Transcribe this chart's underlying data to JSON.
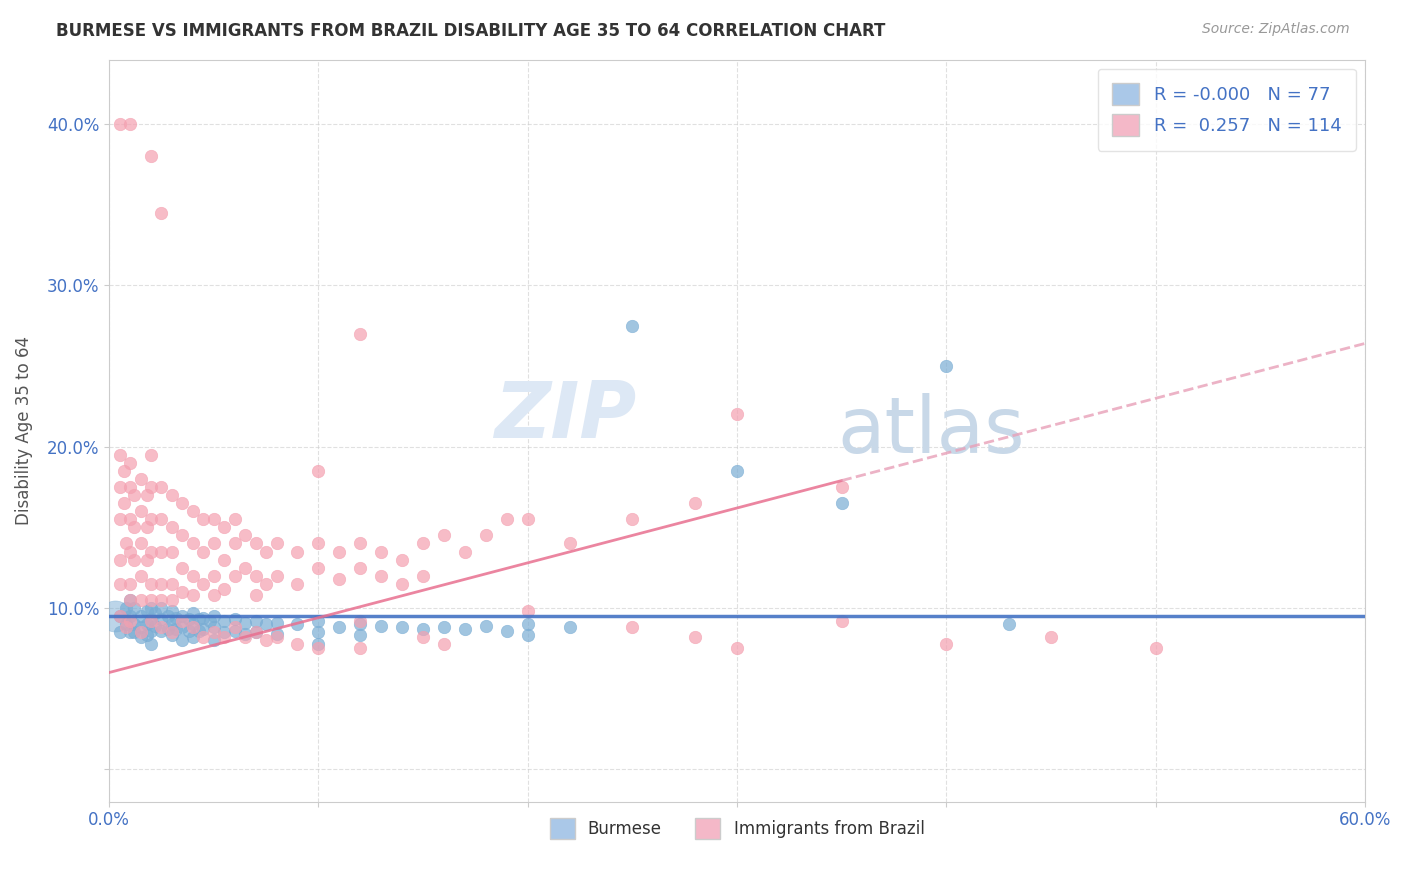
{
  "title": "BURMESE VS IMMIGRANTS FROM BRAZIL DISABILITY AGE 35 TO 64 CORRELATION CHART",
  "source": "Source: ZipAtlas.com",
  "ylabel": "Disability Age 35 to 64",
  "xlim": [
    0.0,
    0.6
  ],
  "ylim": [
    -0.02,
    0.44
  ],
  "burmese_color": "#7aadd4",
  "brazil_color": "#f4a0b0",
  "burmese_R": -0.0,
  "burmese_N": 77,
  "brazil_R": 0.257,
  "brazil_N": 114,
  "trend_blue_color": "#4472C4",
  "trend_pink_color": "#e87090",
  "trend_pink_dash_color": "#e8a0b8",
  "watermark_zip": "ZIP",
  "watermark_atlas": "atlas",
  "burmese_scatter": [
    [
      0.005,
      0.095
    ],
    [
      0.005,
      0.085
    ],
    [
      0.008,
      0.1
    ],
    [
      0.008,
      0.09
    ],
    [
      0.01,
      0.105
    ],
    [
      0.01,
      0.095
    ],
    [
      0.01,
      0.085
    ],
    [
      0.012,
      0.1
    ],
    [
      0.012,
      0.09
    ],
    [
      0.012,
      0.085
    ],
    [
      0.015,
      0.095
    ],
    [
      0.015,
      0.088
    ],
    [
      0.015,
      0.082
    ],
    [
      0.018,
      0.098
    ],
    [
      0.018,
      0.09
    ],
    [
      0.018,
      0.083
    ],
    [
      0.02,
      0.1
    ],
    [
      0.02,
      0.093
    ],
    [
      0.02,
      0.086
    ],
    [
      0.02,
      0.078
    ],
    [
      0.022,
      0.097
    ],
    [
      0.022,
      0.089
    ],
    [
      0.025,
      0.1
    ],
    [
      0.025,
      0.093
    ],
    [
      0.025,
      0.086
    ],
    [
      0.028,
      0.095
    ],
    [
      0.028,
      0.087
    ],
    [
      0.03,
      0.098
    ],
    [
      0.03,
      0.09
    ],
    [
      0.03,
      0.083
    ],
    [
      0.032,
      0.094
    ],
    [
      0.032,
      0.087
    ],
    [
      0.035,
      0.095
    ],
    [
      0.035,
      0.088
    ],
    [
      0.035,
      0.08
    ],
    [
      0.038,
      0.093
    ],
    [
      0.038,
      0.086
    ],
    [
      0.04,
      0.097
    ],
    [
      0.04,
      0.09
    ],
    [
      0.04,
      0.082
    ],
    [
      0.043,
      0.093
    ],
    [
      0.043,
      0.086
    ],
    [
      0.045,
      0.094
    ],
    [
      0.045,
      0.087
    ],
    [
      0.048,
      0.092
    ],
    [
      0.05,
      0.095
    ],
    [
      0.05,
      0.088
    ],
    [
      0.05,
      0.08
    ],
    [
      0.055,
      0.092
    ],
    [
      0.055,
      0.085
    ],
    [
      0.06,
      0.093
    ],
    [
      0.06,
      0.086
    ],
    [
      0.065,
      0.091
    ],
    [
      0.065,
      0.084
    ],
    [
      0.07,
      0.092
    ],
    [
      0.07,
      0.085
    ],
    [
      0.075,
      0.09
    ],
    [
      0.08,
      0.091
    ],
    [
      0.08,
      0.084
    ],
    [
      0.09,
      0.09
    ],
    [
      0.1,
      0.092
    ],
    [
      0.1,
      0.085
    ],
    [
      0.1,
      0.078
    ],
    [
      0.11,
      0.088
    ],
    [
      0.12,
      0.09
    ],
    [
      0.12,
      0.083
    ],
    [
      0.13,
      0.089
    ],
    [
      0.14,
      0.088
    ],
    [
      0.15,
      0.087
    ],
    [
      0.16,
      0.088
    ],
    [
      0.17,
      0.087
    ],
    [
      0.18,
      0.089
    ],
    [
      0.19,
      0.086
    ],
    [
      0.2,
      0.09
    ],
    [
      0.2,
      0.083
    ],
    [
      0.22,
      0.088
    ],
    [
      0.25,
      0.275
    ],
    [
      0.3,
      0.185
    ],
    [
      0.35,
      0.165
    ],
    [
      0.4,
      0.25
    ],
    [
      0.43,
      0.09
    ]
  ],
  "burmese_scatter_large": [
    [
      0.003,
      0.095
    ]
  ],
  "brazil_scatter": [
    [
      0.005,
      0.195
    ],
    [
      0.005,
      0.175
    ],
    [
      0.005,
      0.155
    ],
    [
      0.005,
      0.13
    ],
    [
      0.005,
      0.115
    ],
    [
      0.007,
      0.185
    ],
    [
      0.007,
      0.165
    ],
    [
      0.008,
      0.14
    ],
    [
      0.01,
      0.19
    ],
    [
      0.01,
      0.175
    ],
    [
      0.01,
      0.155
    ],
    [
      0.01,
      0.135
    ],
    [
      0.01,
      0.115
    ],
    [
      0.01,
      0.105
    ],
    [
      0.012,
      0.17
    ],
    [
      0.012,
      0.15
    ],
    [
      0.012,
      0.13
    ],
    [
      0.015,
      0.18
    ],
    [
      0.015,
      0.16
    ],
    [
      0.015,
      0.14
    ],
    [
      0.015,
      0.12
    ],
    [
      0.015,
      0.105
    ],
    [
      0.018,
      0.17
    ],
    [
      0.018,
      0.15
    ],
    [
      0.018,
      0.13
    ],
    [
      0.02,
      0.195
    ],
    [
      0.02,
      0.175
    ],
    [
      0.02,
      0.155
    ],
    [
      0.02,
      0.135
    ],
    [
      0.02,
      0.115
    ],
    [
      0.02,
      0.105
    ],
    [
      0.025,
      0.175
    ],
    [
      0.025,
      0.155
    ],
    [
      0.025,
      0.135
    ],
    [
      0.025,
      0.115
    ],
    [
      0.025,
      0.105
    ],
    [
      0.03,
      0.17
    ],
    [
      0.03,
      0.15
    ],
    [
      0.03,
      0.135
    ],
    [
      0.03,
      0.115
    ],
    [
      0.03,
      0.105
    ],
    [
      0.035,
      0.165
    ],
    [
      0.035,
      0.145
    ],
    [
      0.035,
      0.125
    ],
    [
      0.035,
      0.11
    ],
    [
      0.04,
      0.16
    ],
    [
      0.04,
      0.14
    ],
    [
      0.04,
      0.12
    ],
    [
      0.04,
      0.108
    ],
    [
      0.045,
      0.155
    ],
    [
      0.045,
      0.135
    ],
    [
      0.045,
      0.115
    ],
    [
      0.05,
      0.155
    ],
    [
      0.05,
      0.14
    ],
    [
      0.05,
      0.12
    ],
    [
      0.05,
      0.108
    ],
    [
      0.055,
      0.15
    ],
    [
      0.055,
      0.13
    ],
    [
      0.055,
      0.112
    ],
    [
      0.06,
      0.155
    ],
    [
      0.06,
      0.14
    ],
    [
      0.06,
      0.12
    ],
    [
      0.065,
      0.145
    ],
    [
      0.065,
      0.125
    ],
    [
      0.07,
      0.14
    ],
    [
      0.07,
      0.12
    ],
    [
      0.07,
      0.108
    ],
    [
      0.075,
      0.135
    ],
    [
      0.075,
      0.115
    ],
    [
      0.08,
      0.14
    ],
    [
      0.08,
      0.12
    ],
    [
      0.09,
      0.135
    ],
    [
      0.09,
      0.115
    ],
    [
      0.1,
      0.14
    ],
    [
      0.1,
      0.125
    ],
    [
      0.11,
      0.135
    ],
    [
      0.11,
      0.118
    ],
    [
      0.12,
      0.14
    ],
    [
      0.12,
      0.125
    ],
    [
      0.12,
      0.27
    ],
    [
      0.13,
      0.135
    ],
    [
      0.13,
      0.12
    ],
    [
      0.14,
      0.13
    ],
    [
      0.14,
      0.115
    ],
    [
      0.15,
      0.14
    ],
    [
      0.15,
      0.12
    ],
    [
      0.16,
      0.145
    ],
    [
      0.17,
      0.135
    ],
    [
      0.18,
      0.145
    ],
    [
      0.19,
      0.155
    ],
    [
      0.2,
      0.155
    ],
    [
      0.22,
      0.14
    ],
    [
      0.25,
      0.155
    ],
    [
      0.28,
      0.165
    ],
    [
      0.35,
      0.175
    ],
    [
      0.02,
      0.38
    ],
    [
      0.025,
      0.345
    ],
    [
      0.1,
      0.185
    ],
    [
      0.3,
      0.22
    ],
    [
      0.005,
      0.4
    ],
    [
      0.01,
      0.4
    ],
    [
      0.005,
      0.095
    ],
    [
      0.008,
      0.088
    ],
    [
      0.01,
      0.092
    ],
    [
      0.015,
      0.085
    ],
    [
      0.02,
      0.092
    ],
    [
      0.025,
      0.088
    ],
    [
      0.03,
      0.085
    ],
    [
      0.035,
      0.092
    ],
    [
      0.04,
      0.088
    ],
    [
      0.045,
      0.082
    ],
    [
      0.05,
      0.085
    ],
    [
      0.055,
      0.082
    ],
    [
      0.06,
      0.088
    ],
    [
      0.065,
      0.082
    ],
    [
      0.07,
      0.085
    ],
    [
      0.075,
      0.08
    ],
    [
      0.08,
      0.082
    ],
    [
      0.09,
      0.078
    ],
    [
      0.1,
      0.075
    ],
    [
      0.12,
      0.092
    ],
    [
      0.12,
      0.075
    ],
    [
      0.15,
      0.082
    ],
    [
      0.16,
      0.078
    ],
    [
      0.2,
      0.098
    ],
    [
      0.25,
      0.088
    ],
    [
      0.28,
      0.082
    ],
    [
      0.3,
      0.075
    ],
    [
      0.35,
      0.092
    ],
    [
      0.4,
      0.078
    ],
    [
      0.45,
      0.082
    ],
    [
      0.5,
      0.075
    ]
  ]
}
